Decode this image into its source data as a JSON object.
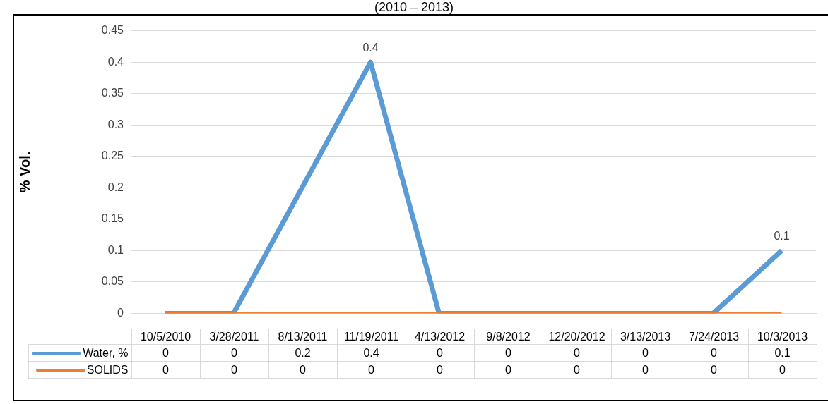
{
  "chart_data": {
    "type": "line",
    "title": "(2010 – 2013)",
    "ylabel": "% Vol.",
    "categories": [
      "10/5/2010",
      "3/28/2011",
      "8/13/2011",
      "11/19/2011",
      "4/13/2012",
      "9/8/2012",
      "12/20/2012",
      "3/13/2013",
      "7/24/2013",
      "10/3/2013"
    ],
    "series": [
      {
        "name": "Water, %",
        "color": "#5b9bd5",
        "values": [
          0,
          0,
          0.2,
          0.4,
          0,
          0,
          0,
          0,
          0,
          0.1
        ]
      },
      {
        "name": "SOLIDS",
        "color": "#ed7d31",
        "values": [
          0,
          0,
          0,
          0,
          0,
          0,
          0,
          0,
          0,
          0
        ]
      }
    ],
    "ylim": [
      0,
      0.45
    ],
    "yticks": [
      0,
      0.05,
      0.1,
      0.15,
      0.2,
      0.25,
      0.3,
      0.35,
      0.4,
      0.45
    ],
    "annotations": [
      {
        "text": "0.4",
        "x": "11/19/2011",
        "y": 0.4
      },
      {
        "text": "0.1",
        "x": "10/3/2013",
        "y": 0.1
      }
    ],
    "grid": "y",
    "legend": "bottom",
    "data_labels": true,
    "marker": "none",
    "line_style": "solid"
  }
}
